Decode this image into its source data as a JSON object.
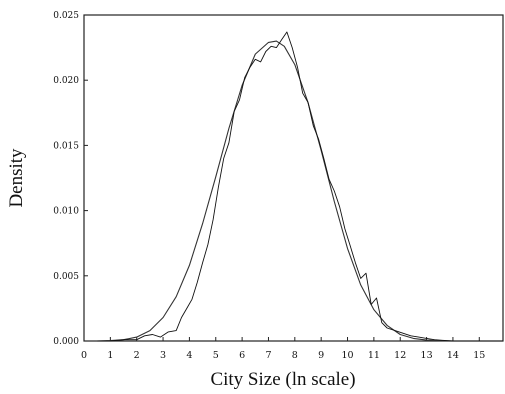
{
  "chart_data": {
    "type": "line",
    "title": "",
    "xlabel": "City Size (ln scale)",
    "ylabel": "Density",
    "xlim": [
      0,
      15.9
    ],
    "ylim": [
      0,
      0.025
    ],
    "x_ticks": [
      0,
      1,
      2,
      3,
      4,
      5,
      6,
      7,
      8,
      9,
      10,
      11,
      12,
      13,
      14,
      15
    ],
    "x_tick_labels": [
      "0",
      "1",
      "2",
      "3",
      "4",
      "5",
      "6",
      "7",
      "8",
      "9",
      "10",
      "11",
      "12",
      "13",
      "14",
      "15"
    ],
    "y_ticks": [
      0,
      0.005,
      0.01,
      0.015,
      0.02,
      0.025
    ],
    "y_tick_labels": [
      "0.000",
      "0.005",
      "0.010",
      "0.015",
      "0.020",
      "0.025"
    ],
    "grid": false,
    "legend": "none",
    "series": [
      {
        "style": "smooth",
        "x": [
          0.5,
          1.0,
          1.5,
          2.0,
          2.5,
          3.0,
          3.5,
          4.0,
          4.5,
          5.0,
          5.5,
          6.0,
          6.5,
          7.0,
          7.3,
          7.6,
          8.0,
          8.5,
          9.0,
          9.5,
          10.0,
          10.5,
          11.0,
          11.5,
          12.0,
          12.5,
          13.0,
          13.5,
          14.0,
          14.5,
          15.0,
          15.9
        ],
        "values": [
          0.0,
          3e-05,
          0.0001,
          0.0003,
          0.0008,
          0.0018,
          0.0034,
          0.0058,
          0.009,
          0.0126,
          0.0163,
          0.0196,
          0.022,
          0.0229,
          0.023,
          0.0226,
          0.0212,
          0.0183,
          0.0146,
          0.0107,
          0.0071,
          0.0043,
          0.0024,
          0.0012,
          0.0005,
          0.0002,
          7e-05,
          2e-05,
          0.0,
          0.0,
          0.0,
          0.0
        ]
      },
      {
        "style": "empirical",
        "x": [
          0.5,
          1.0,
          1.5,
          2.0,
          2.3,
          2.6,
          2.9,
          3.2,
          3.5,
          3.7,
          3.9,
          4.1,
          4.3,
          4.5,
          4.7,
          4.9,
          5.1,
          5.3,
          5.5,
          5.7,
          5.9,
          6.1,
          6.3,
          6.5,
          6.7,
          6.9,
          7.1,
          7.3,
          7.5,
          7.7,
          7.9,
          8.1,
          8.3,
          8.5,
          8.7,
          8.9,
          9.1,
          9.3,
          9.5,
          9.7,
          9.9,
          10.1,
          10.3,
          10.5,
          10.7,
          10.9,
          11.1,
          11.3,
          11.5,
          11.8,
          12.1,
          12.4,
          12.7,
          13.0,
          13.3,
          13.6,
          14.0,
          14.5,
          15.0,
          15.9
        ],
        "values": [
          0.0,
          0.0,
          0.0001,
          0.0001,
          0.0004,
          0.0005,
          0.0003,
          0.0007,
          0.0008,
          0.0018,
          0.0025,
          0.0032,
          0.0045,
          0.006,
          0.0074,
          0.0093,
          0.0118,
          0.014,
          0.0152,
          0.0176,
          0.0185,
          0.0202,
          0.021,
          0.0216,
          0.0214,
          0.0222,
          0.0226,
          0.0225,
          0.0231,
          0.0237,
          0.0225,
          0.021,
          0.019,
          0.0183,
          0.0165,
          0.0155,
          0.014,
          0.0124,
          0.0115,
          0.0103,
          0.0086,
          0.0073,
          0.006,
          0.0048,
          0.0052,
          0.0028,
          0.0033,
          0.0014,
          0.001,
          0.0008,
          0.0006,
          0.0004,
          0.0003,
          0.0002,
          0.0001,
          5e-05,
          0.0,
          0.0,
          0.0,
          0.0
        ]
      }
    ]
  }
}
